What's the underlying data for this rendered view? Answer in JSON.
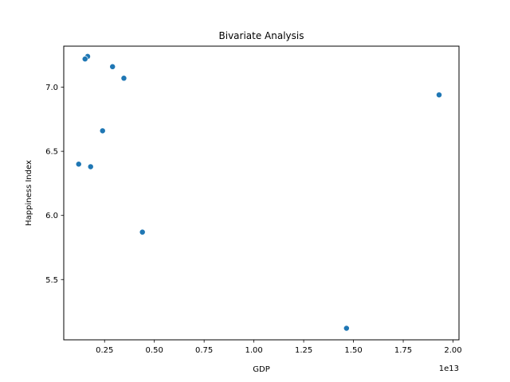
{
  "chart_data": {
    "type": "scatter",
    "title": "Bivariate Analysis",
    "xlabel": "GDP",
    "ylabel": "Happiness Index",
    "x_offset_text": "1e13",
    "xlim": [
      0.045,
      2.03
    ],
    "ylim": [
      5.03,
      7.32
    ],
    "x_ticks": [
      0.25,
      0.5,
      0.75,
      1.0,
      1.25,
      1.5,
      1.75,
      2.0
    ],
    "x_tick_labels": [
      "0.25",
      "0.50",
      "0.75",
      "1.00",
      "1.25",
      "1.50",
      "1.75",
      "2.00"
    ],
    "y_ticks": [
      5.5,
      6.0,
      6.5,
      7.0
    ],
    "y_tick_labels": [
      "5.5",
      "6.0",
      "6.5",
      "7.0"
    ],
    "grid": false,
    "marker_color": "#1f77b4",
    "marker_edge_color": "#ffffff",
    "points": [
      {
        "x": 0.165,
        "y": 7.24
      },
      {
        "x": 0.152,
        "y": 7.22
      },
      {
        "x": 0.29,
        "y": 7.16
      },
      {
        "x": 0.347,
        "y": 7.07
      },
      {
        "x": 1.93,
        "y": 6.94
      },
      {
        "x": 0.24,
        "y": 6.66
      },
      {
        "x": 0.12,
        "y": 6.4
      },
      {
        "x": 0.18,
        "y": 6.38
      },
      {
        "x": 0.44,
        "y": 5.87
      },
      {
        "x": 1.465,
        "y": 5.12
      }
    ]
  }
}
